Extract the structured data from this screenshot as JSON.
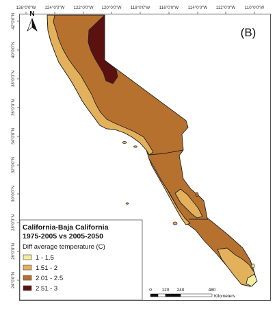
{
  "panel_label": "(B)",
  "north_arrow": {
    "label": "N"
  },
  "longitude_ticks": [
    "126°0'0\"W",
    "124°0'0\"W",
    "122°0'0\"W",
    "120°0'0\"W",
    "118°0'0\"W",
    "116°0'0\"W",
    "114°0'0\"W",
    "112°0'0\"W",
    "110°0'0\"W"
  ],
  "latitude_ticks": [
    "42°0'0\"N",
    "40°0'0\"N",
    "38°0'0\"N",
    "36°0'0\"N",
    "34°0'0\"N",
    "32°0'0\"N",
    "30°0'0\"N",
    "28°0'0\"N",
    "26°0'0\"N",
    "24°0'0\"N"
  ],
  "legend": {
    "title_line1": "California-Baja California",
    "title_line2": "1975-2005 vs 2005-2050",
    "subtitle": "Diff average temperature (C)",
    "items": [
      {
        "label": "1 - 1.5",
        "color": "#f2eda0"
      },
      {
        "label": "1.51 - 2",
        "color": "#e3b15b"
      },
      {
        "label": "2.01 - 2.5",
        "color": "#b7712e"
      },
      {
        "label": "2.51 - 3",
        "color": "#5c1111"
      }
    ]
  },
  "scale_bar": {
    "ticks": [
      "0",
      "120",
      "240",
      "480"
    ],
    "unit": "Kilometers"
  },
  "colors": {
    "class_1": "#f2eda0",
    "class_2": "#e3b15b",
    "class_3": "#b7712e",
    "class_4": "#5c1111",
    "outline": "#222222",
    "frame": "#555555"
  }
}
